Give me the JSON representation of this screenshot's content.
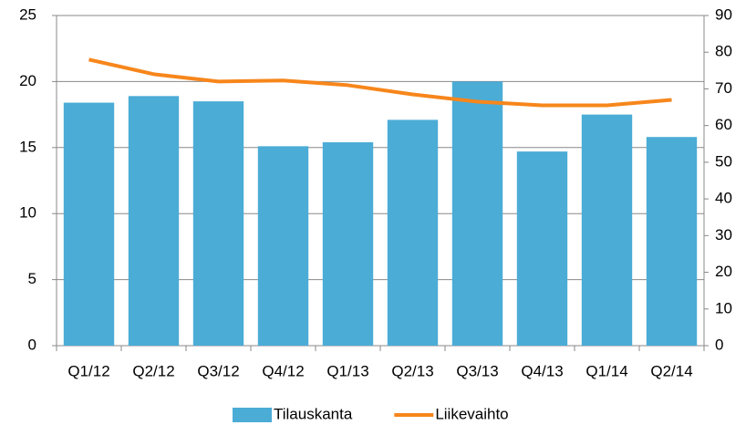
{
  "chart_data": {
    "type": "bar",
    "categories": [
      "Q1/12",
      "Q2/12",
      "Q3/12",
      "Q4/12",
      "Q1/13",
      "Q2/13",
      "Q3/13",
      "Q4/13",
      "Q1/14",
      "Q2/14"
    ],
    "series": [
      {
        "name": "Tilauskanta",
        "type": "bar",
        "color": "#4bacd6",
        "values": [
          18.4,
          18.9,
          18.5,
          15.1,
          15.4,
          17.1,
          20.0,
          14.7,
          17.5,
          15.8
        ]
      },
      {
        "name": "Liikevaihto",
        "type": "line",
        "axis": "y2",
        "color": "#f7861b",
        "values": [
          78,
          74,
          72,
          72.3,
          71,
          68.5,
          66.5,
          65.5,
          65.5,
          67
        ]
      }
    ],
    "ylim": [
      0,
      25
    ],
    "yticks": [
      0,
      5,
      10,
      15,
      20,
      25
    ],
    "y2lim": [
      0,
      90
    ],
    "y2ticks": [
      0,
      10,
      20,
      30,
      40,
      50,
      60,
      70,
      80,
      90
    ],
    "grid": true,
    "legend": "bottom"
  }
}
